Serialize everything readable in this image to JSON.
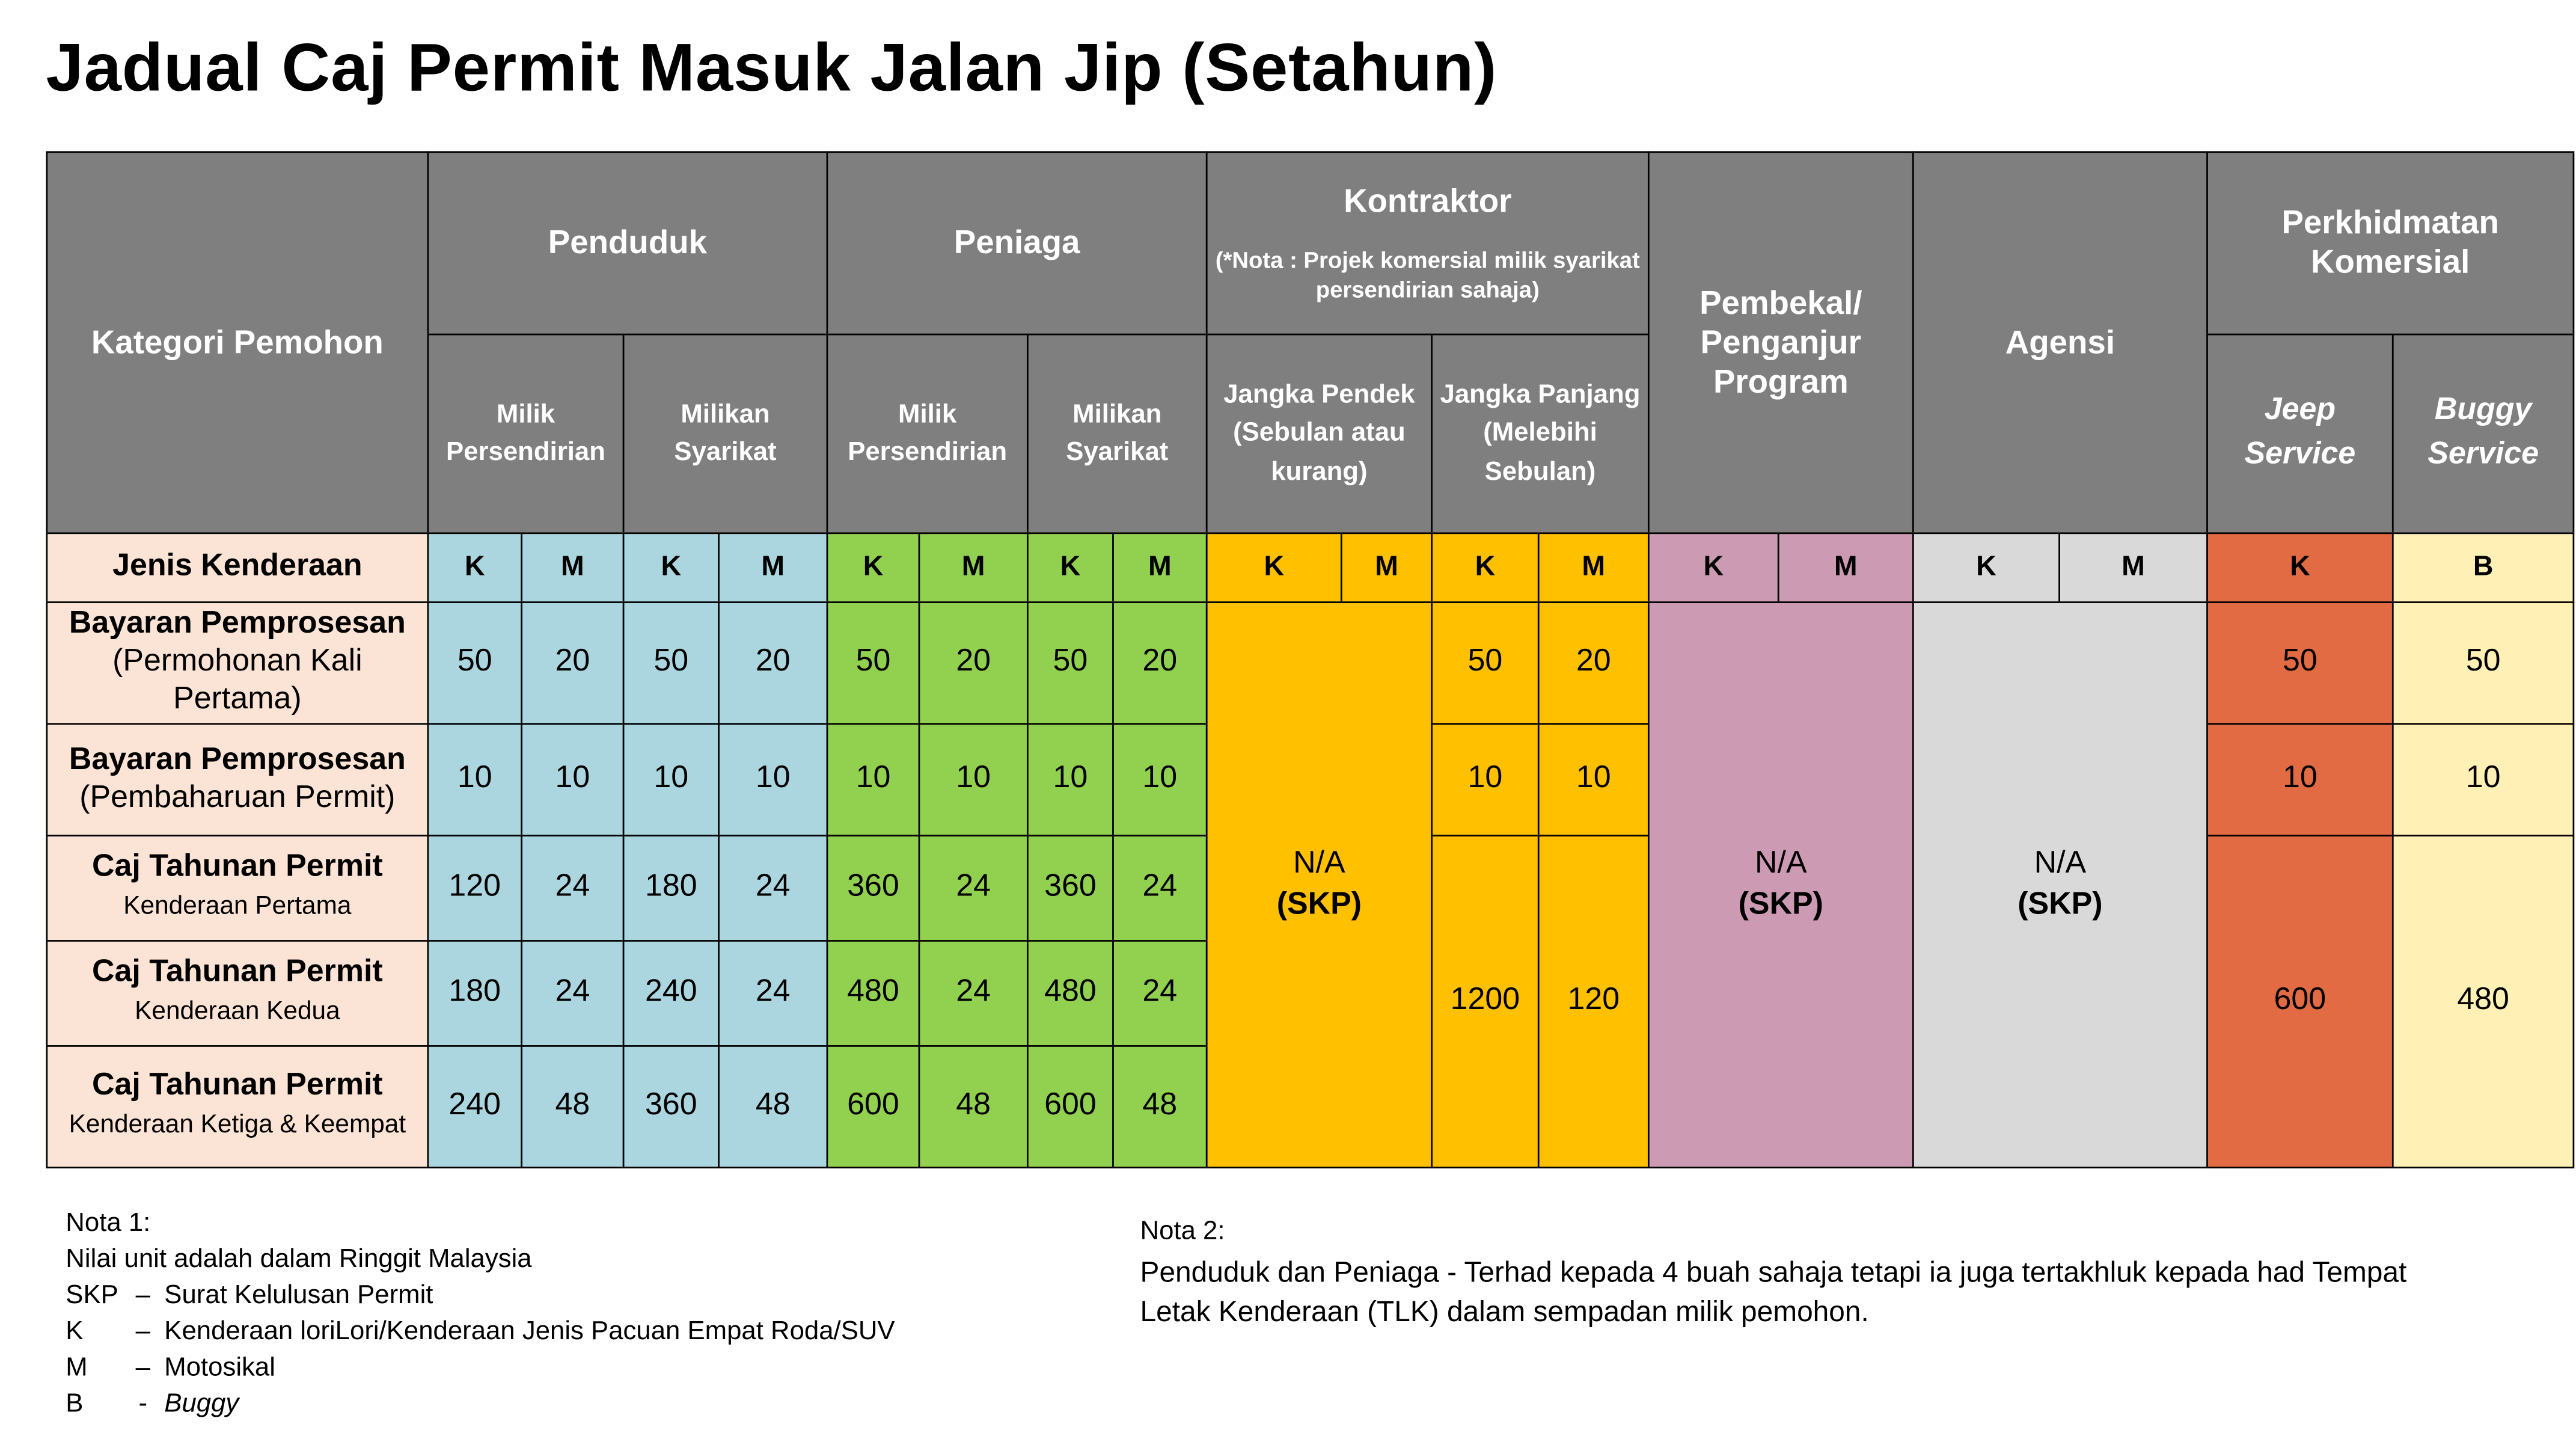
{
  "title": "Jadual Caj Permit Masuk Jalan Jip (Setahun)",
  "table": {
    "corner": "Kategori Pemohon",
    "groups": [
      {
        "label": "Penduduk",
        "subs": [
          "Milik Persendirian",
          "Milikan Syarikat"
        ]
      },
      {
        "label": "Peniaga",
        "subs": [
          "Milik Persendirian",
          "Milikan Syarikat"
        ]
      },
      {
        "label": "Kontraktor",
        "note": "(*Nota : Projek komersial milik syarikat persendirian sahaja)",
        "subs": [
          "Jangka Pendek (Sebulan atau kurang)",
          "Jangka Panjang (Melebihi Sebulan)"
        ]
      },
      {
        "label": "Pembekal/ Penganjur Program"
      },
      {
        "label": "Agensi"
      },
      {
        "label": "Perkhidmatan Komersial",
        "subs": [
          "Jeep Service",
          "Buggy Service"
        ]
      }
    ],
    "vehicle_row": {
      "label": "Jenis Kenderaan",
      "types": [
        "K",
        "M",
        "K",
        "M",
        "K",
        "M",
        "K",
        "M",
        "K",
        "M",
        "K",
        "M",
        "K",
        "M",
        "K",
        "M",
        "K",
        "B"
      ]
    },
    "rows": [
      {
        "label": "Bayaran Pemprosesan",
        "sublabel": "(Permohonan Kali Pertama)",
        "values": [
          "50",
          "20",
          "50",
          "20",
          "50",
          "20",
          "50",
          "20",
          "50",
          "20",
          "50",
          "50"
        ]
      },
      {
        "label": "Bayaran Pemprosesan",
        "sublabel": "(Pembaharuan Permit)",
        "values": [
          "10",
          "10",
          "10",
          "10",
          "10",
          "10",
          "10",
          "10",
          "10",
          "10",
          "10",
          "10"
        ]
      },
      {
        "label": "Caj Tahunan Permit",
        "sublabel": "Kenderaan Pertama",
        "values": [
          "120",
          "24",
          "180",
          "24",
          "360",
          "24",
          "360",
          "24"
        ]
      },
      {
        "label": "Caj Tahunan Permit",
        "sublabel": "Kenderaan Kedua",
        "values": [
          "180",
          "24",
          "240",
          "24",
          "480",
          "24",
          "480",
          "24"
        ]
      },
      {
        "label": "Caj Tahunan Permit",
        "sublabel": "Kenderaan Ketiga & Keempat",
        "values": [
          "240",
          "48",
          "360",
          "48",
          "600",
          "48",
          "600",
          "48"
        ]
      }
    ],
    "merged": {
      "jangka_panjang": [
        "1200",
        "120"
      ],
      "perkhidmatan": [
        "600",
        "480"
      ],
      "not_applicable": [
        {
          "text": "N/A",
          "note": "(SKP)"
        },
        {
          "text": "N/A",
          "note": "(SKP)"
        },
        {
          "text": "N/A",
          "note": "(SKP)"
        }
      ]
    }
  },
  "notes": {
    "nota1": {
      "heading": "Nota 1:",
      "intro": "Nilai unit adalah dalam Ringgit Malaysia",
      "items": [
        {
          "abbr": "SKP",
          "sep": "–",
          "text": "Surat Kelulusan Permit"
        },
        {
          "abbr": "K",
          "sep": "–",
          "text": "Kenderaan loriLori/Kenderaan Jenis Pacuan Empat Roda/SUV"
        },
        {
          "abbr": "M",
          "sep": "–",
          "text": "Motosikal"
        },
        {
          "abbr": "B",
          "sep": "-",
          "text": "Buggy"
        }
      ]
    },
    "nota2": {
      "heading": "Nota 2:",
      "text": "Penduduk dan Peniaga - Terhad kepada 4 buah sahaja tetapi ia juga tertakhluk kepada had Tempat Letak Kenderaan (TLK) dalam sempadan milik pemohon."
    }
  }
}
